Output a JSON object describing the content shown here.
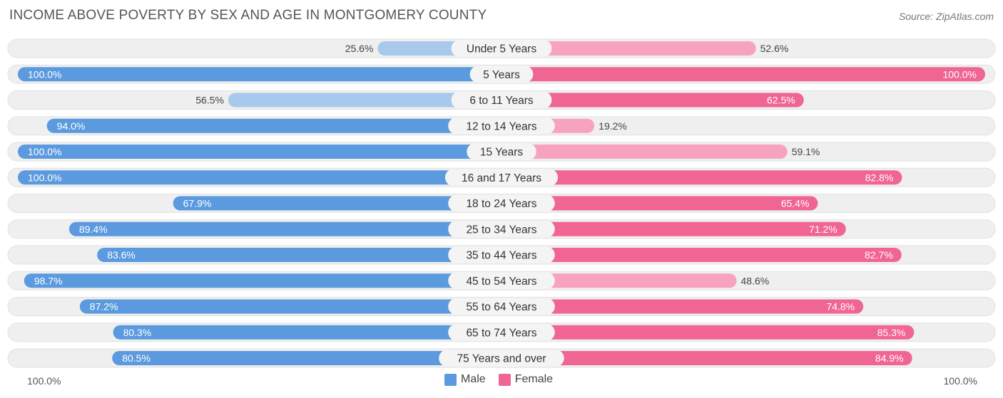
{
  "header": {
    "title": "INCOME ABOVE POVERTY BY SEX AND AGE IN MONTGOMERY COUNTY",
    "source": "Source: ZipAtlas.com"
  },
  "colors": {
    "male_strong": "#5b9ade",
    "male_light": "#a8c8ec",
    "female_strong": "#f06592",
    "female_light": "#f7a3bf",
    "track": "#efefef"
  },
  "legend": {
    "male_label": "Male",
    "female_label": "Female"
  },
  "axis": {
    "left_label": "100.0%",
    "right_label": "100.0%"
  },
  "chart_data": {
    "type": "bar",
    "orientation": "horizontal-diverging",
    "title": "INCOME ABOVE POVERTY BY SEX AND AGE IN MONTGOMERY COUNTY",
    "xlim": [
      0,
      100
    ],
    "categories": [
      "Under 5 Years",
      "5 Years",
      "6 to 11 Years",
      "12 to 14 Years",
      "15 Years",
      "16 and 17 Years",
      "18 to 24 Years",
      "25 to 34 Years",
      "35 to 44 Years",
      "45 to 54 Years",
      "55 to 64 Years",
      "65 to 74 Years",
      "75 Years and over"
    ],
    "series": [
      {
        "name": "Male",
        "values": [
          25.6,
          100.0,
          56.5,
          94.0,
          100.0,
          100.0,
          67.9,
          89.4,
          83.6,
          98.7,
          87.2,
          80.3,
          80.5
        ],
        "labels": [
          "25.6%",
          "100.0%",
          "56.5%",
          "94.0%",
          "100.0%",
          "100.0%",
          "67.9%",
          "89.4%",
          "83.6%",
          "98.7%",
          "87.2%",
          "80.3%",
          "80.5%"
        ]
      },
      {
        "name": "Female",
        "values": [
          52.6,
          100.0,
          62.5,
          19.2,
          59.1,
          82.8,
          65.4,
          71.2,
          82.7,
          48.6,
          74.8,
          85.3,
          84.9
        ],
        "labels": [
          "52.6%",
          "100.0%",
          "62.5%",
          "19.2%",
          "59.1%",
          "82.8%",
          "65.4%",
          "71.2%",
          "82.7%",
          "48.6%",
          "74.8%",
          "85.3%",
          "84.9%"
        ]
      }
    ],
    "legend_position": "bottom-center"
  }
}
